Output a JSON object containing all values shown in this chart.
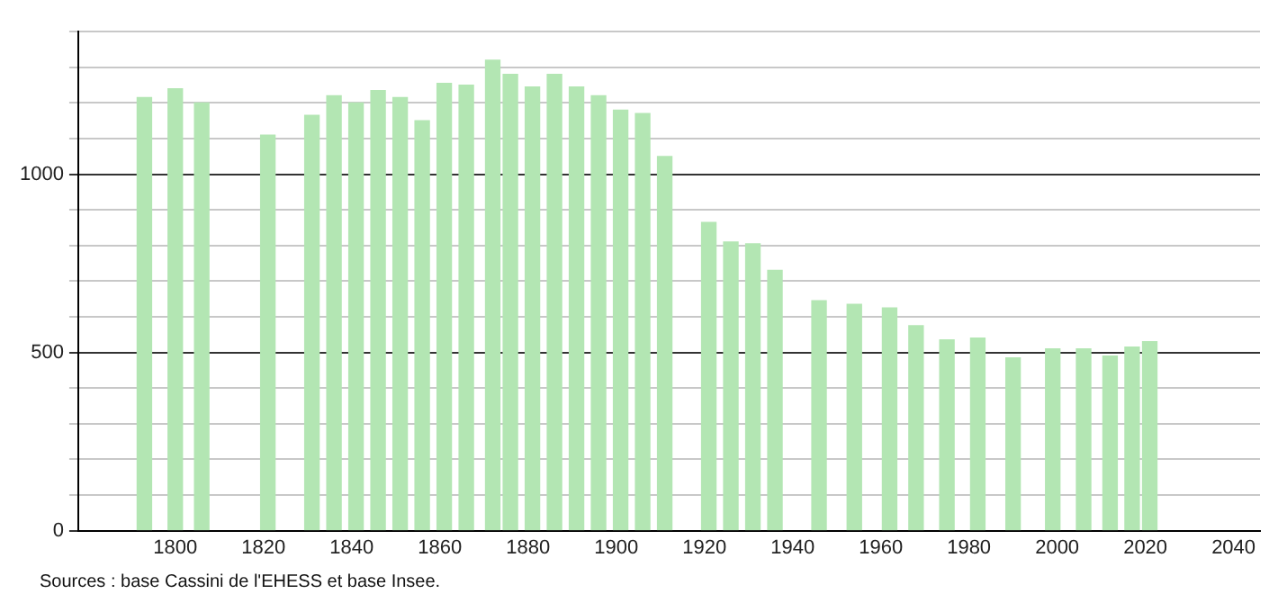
{
  "chart_data": {
    "type": "bar",
    "x": [
      1793,
      1800,
      1806,
      1821,
      1831,
      1836,
      1841,
      1846,
      1851,
      1856,
      1861,
      1866,
      1872,
      1876,
      1881,
      1886,
      1891,
      1896,
      1901,
      1906,
      1911,
      1921,
      1926,
      1931,
      1936,
      1946,
      1954,
      1962,
      1968,
      1975,
      1982,
      1990,
      1999,
      2006,
      2012,
      2017,
      2021
    ],
    "values": [
      1215,
      1240,
      1200,
      1110,
      1165,
      1220,
      1200,
      1235,
      1215,
      1150,
      1255,
      1250,
      1320,
      1280,
      1245,
      1280,
      1245,
      1220,
      1180,
      1170,
      1050,
      865,
      810,
      805,
      730,
      645,
      635,
      625,
      575,
      535,
      540,
      485,
      510,
      510,
      490,
      515,
      530
    ],
    "color": "#b3e6b3",
    "xlim": [
      1778,
      2046
    ],
    "xticks": [
      1800,
      1820,
      1840,
      1860,
      1880,
      1900,
      1920,
      1940,
      1960,
      1980,
      2000,
      2020,
      2040
    ],
    "ylim": [
      0,
      1400
    ],
    "yticks": [
      0,
      {
        "value": 100,
        "label": null
      },
      {
        "value": 200,
        "label": null
      },
      {
        "value": 300,
        "label": null
      },
      {
        "value": 400,
        "label": null
      },
      500,
      {
        "value": 600,
        "label": null
      },
      {
        "value": 700,
        "label": null
      },
      {
        "value": 800,
        "label": null
      },
      {
        "value": 900,
        "label": null
      },
      1000,
      {
        "value": 1100,
        "label": null
      },
      {
        "value": 1200,
        "label": null
      },
      {
        "value": 1300,
        "label": null
      },
      {
        "value": 1400,
        "label": null
      }
    ],
    "grid": "y",
    "annotations": [
      "Sources : base Cassini de l'EHESS et base Insee."
    ]
  }
}
